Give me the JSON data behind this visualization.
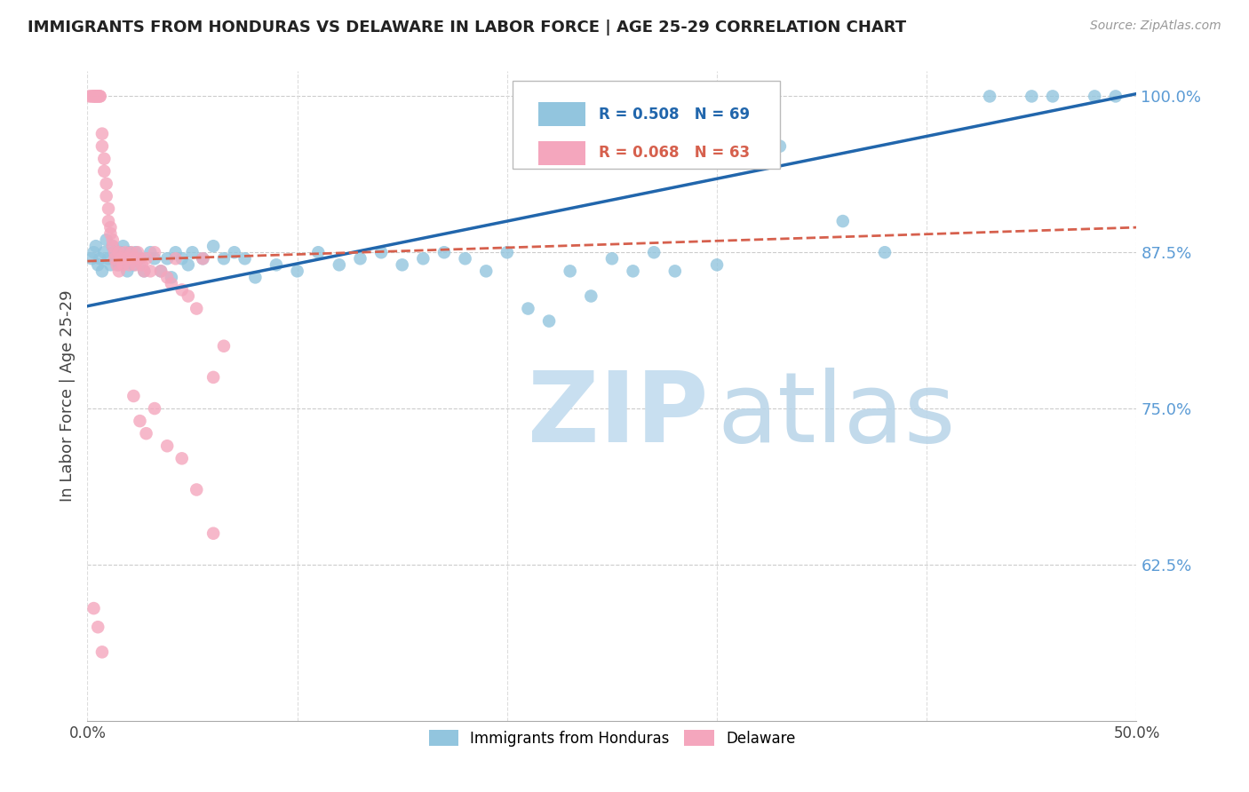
{
  "title": "IMMIGRANTS FROM HONDURAS VS DELAWARE IN LABOR FORCE | AGE 25-29 CORRELATION CHART",
  "source": "Source: ZipAtlas.com",
  "ylabel": "In Labor Force | Age 25-29",
  "xlim": [
    0.0,
    0.5
  ],
  "ylim": [
    0.5,
    1.02
  ],
  "yticks": [
    0.625,
    0.75,
    0.875,
    1.0
  ],
  "ytick_labels": [
    "62.5%",
    "75.0%",
    "87.5%",
    "100.0%"
  ],
  "xticks": [
    0.0,
    0.1,
    0.2,
    0.3,
    0.4,
    0.5
  ],
  "legend_blue_r": "R = 0.508",
  "legend_blue_n": "N = 69",
  "legend_pink_r": "R = 0.068",
  "legend_pink_n": "N = 63",
  "legend_blue_label": "Immigrants from Honduras",
  "legend_pink_label": "Delaware",
  "blue_color": "#92c5de",
  "pink_color": "#f4a6bd",
  "blue_line_color": "#2166ac",
  "pink_line_color": "#d6604d",
  "blue_line_x0": 0.0,
  "blue_line_y0": 0.832,
  "blue_line_x1": 0.5,
  "blue_line_y1": 1.002,
  "pink_line_x0": 0.0,
  "pink_line_y0": 0.868,
  "pink_line_x1": 0.5,
  "pink_line_y1": 0.895,
  "blue_scatter_x": [
    0.002,
    0.003,
    0.004,
    0.005,
    0.006,
    0.007,
    0.008,
    0.009,
    0.01,
    0.011,
    0.012,
    0.013,
    0.014,
    0.015,
    0.016,
    0.017,
    0.018,
    0.019,
    0.02,
    0.021,
    0.022,
    0.023,
    0.025,
    0.027,
    0.03,
    0.032,
    0.035,
    0.038,
    0.04,
    0.042,
    0.045,
    0.048,
    0.05,
    0.055,
    0.06,
    0.065,
    0.07,
    0.075,
    0.08,
    0.09,
    0.1,
    0.11,
    0.12,
    0.13,
    0.14,
    0.15,
    0.16,
    0.17,
    0.18,
    0.19,
    0.2,
    0.21,
    0.22,
    0.23,
    0.24,
    0.25,
    0.26,
    0.27,
    0.28,
    0.3,
    0.31,
    0.33,
    0.36,
    0.38,
    0.43,
    0.45,
    0.46,
    0.48,
    0.49
  ],
  "blue_scatter_y": [
    0.87,
    0.875,
    0.88,
    0.865,
    0.87,
    0.86,
    0.875,
    0.885,
    0.87,
    0.865,
    0.88,
    0.875,
    0.87,
    0.865,
    0.875,
    0.88,
    0.87,
    0.86,
    0.875,
    0.87,
    0.865,
    0.875,
    0.87,
    0.86,
    0.875,
    0.87,
    0.86,
    0.87,
    0.855,
    0.875,
    0.87,
    0.865,
    0.875,
    0.87,
    0.88,
    0.87,
    0.875,
    0.87,
    0.855,
    0.865,
    0.86,
    0.875,
    0.865,
    0.87,
    0.875,
    0.865,
    0.87,
    0.875,
    0.87,
    0.86,
    0.875,
    0.83,
    0.82,
    0.86,
    0.84,
    0.87,
    0.86,
    0.875,
    0.86,
    0.865,
    1.0,
    0.96,
    0.9,
    0.875,
    1.0,
    1.0,
    1.0,
    1.0,
    1.0
  ],
  "pink_scatter_x": [
    0.001,
    0.002,
    0.003,
    0.003,
    0.004,
    0.004,
    0.005,
    0.005,
    0.006,
    0.006,
    0.007,
    0.007,
    0.008,
    0.008,
    0.009,
    0.009,
    0.01,
    0.01,
    0.011,
    0.011,
    0.012,
    0.012,
    0.013,
    0.013,
    0.014,
    0.015,
    0.015,
    0.016,
    0.017,
    0.018,
    0.019,
    0.02,
    0.021,
    0.022,
    0.023,
    0.024,
    0.025,
    0.026,
    0.027,
    0.028,
    0.03,
    0.032,
    0.035,
    0.038,
    0.04,
    0.042,
    0.045,
    0.048,
    0.052,
    0.055,
    0.06,
    0.065,
    0.022,
    0.025,
    0.028,
    0.032,
    0.038,
    0.045,
    0.052,
    0.06,
    0.003,
    0.005,
    0.007
  ],
  "pink_scatter_y": [
    1.0,
    1.0,
    1.0,
    1.0,
    1.0,
    1.0,
    1.0,
    1.0,
    1.0,
    1.0,
    0.97,
    0.96,
    0.95,
    0.94,
    0.93,
    0.92,
    0.91,
    0.9,
    0.895,
    0.89,
    0.885,
    0.88,
    0.875,
    0.87,
    0.865,
    0.86,
    0.875,
    0.87,
    0.865,
    0.875,
    0.87,
    0.865,
    0.875,
    0.87,
    0.865,
    0.875,
    0.87,
    0.865,
    0.86,
    0.87,
    0.86,
    0.875,
    0.86,
    0.855,
    0.85,
    0.87,
    0.845,
    0.84,
    0.83,
    0.87,
    0.775,
    0.8,
    0.76,
    0.74,
    0.73,
    0.75,
    0.72,
    0.71,
    0.685,
    0.65,
    0.59,
    0.575,
    0.555
  ]
}
